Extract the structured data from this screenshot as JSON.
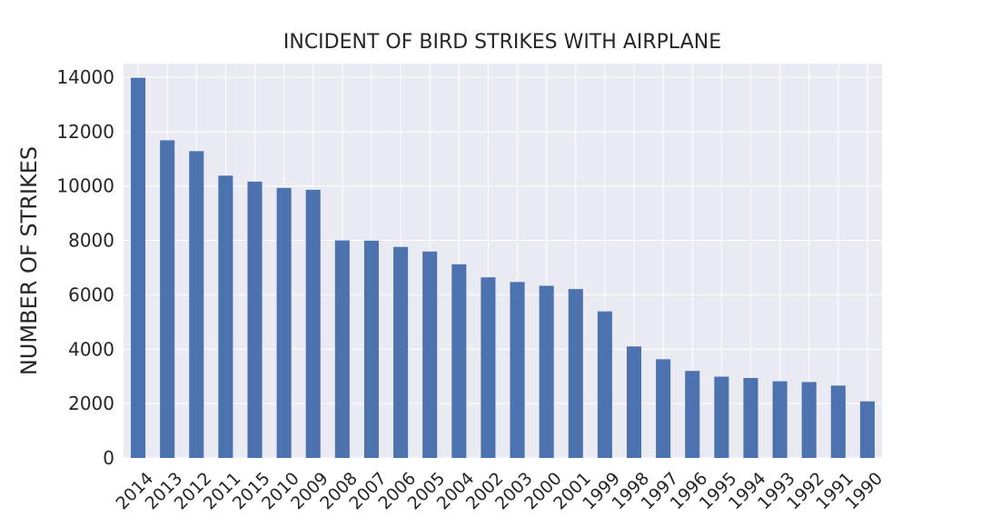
{
  "chart_data": {
    "type": "bar",
    "title": "INCIDENT OF BIRD STRIKES WITH AIRPLANE",
    "xlabel": "",
    "ylabel": "NUMBER OF STRIKES",
    "categories": [
      "2014",
      "2013",
      "2012",
      "2011",
      "2015",
      "2010",
      "2009",
      "2008",
      "2007",
      "2006",
      "2005",
      "2004",
      "2002",
      "2003",
      "2000",
      "2001",
      "1999",
      "1998",
      "1997",
      "1996",
      "1995",
      "1994",
      "1993",
      "1992",
      "1991",
      "1990"
    ],
    "values": [
      13980,
      11680,
      11280,
      10380,
      10160,
      9930,
      9860,
      8000,
      7990,
      7760,
      7590,
      7120,
      6640,
      6470,
      6330,
      6210,
      5390,
      4100,
      3630,
      3200,
      2990,
      2940,
      2820,
      2790,
      2660,
      2080
    ],
    "ylim": [
      0,
      14500
    ],
    "yticks": [
      0,
      2000,
      4000,
      6000,
      8000,
      10000,
      12000,
      14000
    ],
    "grid": true,
    "bar_color": "#4c72b0",
    "background_color": "#eaeaf2"
  }
}
